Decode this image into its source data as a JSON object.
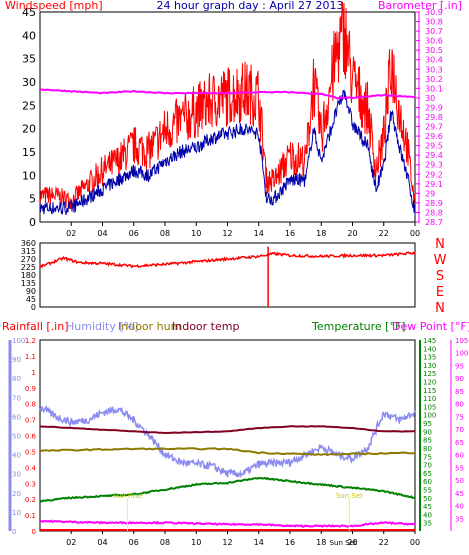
{
  "colors": {
    "wind": "#ff0000",
    "gust_avg": "#0000aa",
    "baro": "#ff00ff",
    "winddir": "#ff0000",
    "rain": "#ff0000",
    "humidity": "#8c8cf0",
    "indoor_hum": "#8c7a00",
    "indoor_temp": "#800020",
    "temperature": "#008000",
    "dewpoint": "#ff00ff",
    "axis_text": "#000000",
    "grid": "#ffffff",
    "frame": "#000000"
  },
  "chart_data": [
    {
      "type": "line",
      "title": "24 hour graph day : April 27 2013",
      "ylabel_left": "Windspeed [mph]",
      "ylabel_right": "Barometer [.in]",
      "x_ticks": [
        "02",
        "04",
        "06",
        "08",
        "10",
        "12",
        "14",
        "16",
        "18",
        "20",
        "22",
        "00"
      ],
      "ylim_left": [
        0,
        45
      ],
      "y_ticks_left": [
        "45",
        "40",
        "35",
        "30",
        "25",
        "20",
        "15",
        "10",
        "5",
        "0"
      ],
      "ylim_right": [
        28.7,
        30.9
      ],
      "y_ticks_right": [
        "30.9",
        "30.8",
        "30.7",
        "30.6",
        "30.5",
        "30.4",
        "30.3",
        "30.2",
        "30.1",
        "30",
        "29.9",
        "29.8",
        "29.7",
        "29.6",
        "29.5",
        "29.4",
        "29.3",
        "29.2",
        "29.1",
        "29",
        "28.9",
        "28.8",
        "28.7"
      ],
      "series": [
        {
          "name": "Windspeed [mph]",
          "axis": "left",
          "x": [
            0,
            1,
            2,
            3,
            4,
            5,
            6,
            7,
            8,
            9,
            10,
            11,
            12,
            13,
            14,
            14.5,
            15,
            16,
            17,
            17.5,
            18,
            19,
            19.5,
            20,
            21,
            21.5,
            22,
            22.5,
            23,
            23.5,
            24
          ],
          "values": [
            5,
            5,
            4,
            7,
            10,
            12,
            15,
            14,
            18,
            20,
            22,
            24,
            25,
            26,
            25,
            8,
            8,
            13,
            12,
            28,
            17,
            34,
            38,
            28,
            22,
            10,
            17,
            32,
            22,
            15,
            3
          ]
        },
        {
          "name": "Average wind",
          "axis": "left",
          "x": [
            0,
            1,
            2,
            3,
            4,
            5,
            6,
            7,
            8,
            9,
            10,
            11,
            12,
            13,
            14,
            14.5,
            15,
            16,
            17,
            17.5,
            18,
            19,
            19.5,
            20,
            21,
            21.5,
            22,
            22.5,
            23,
            23.5,
            24
          ],
          "values": [
            3,
            3,
            3,
            5,
            7,
            9,
            11,
            10,
            13,
            15,
            16,
            18,
            19,
            20,
            19,
            5,
            5,
            9,
            9,
            20,
            13,
            24,
            28,
            21,
            16,
            7,
            12,
            24,
            16,
            10,
            2
          ]
        },
        {
          "name": "Barometer [.in]",
          "axis": "right",
          "x": [
            0,
            2,
            4,
            6,
            8,
            10,
            12,
            14,
            16,
            18,
            19,
            20,
            22,
            24
          ],
          "values": [
            30.09,
            30.07,
            30.05,
            30.07,
            30.05,
            30.05,
            30.05,
            30.06,
            30.06,
            30.04,
            30.0,
            30.0,
            30.03,
            30.01
          ]
        }
      ]
    },
    {
      "type": "line",
      "ylabel_right_ticks": [
        "N",
        "W",
        "S",
        "E",
        "N"
      ],
      "ylim": [
        0,
        360
      ],
      "y_ticks_left": [
        "360",
        "315",
        "270",
        "225",
        "180",
        "135",
        "90",
        "45",
        "0"
      ],
      "series": [
        {
          "name": "Wind direction",
          "x": [
            0,
            1.5,
            2.5,
            4,
            6,
            8,
            10,
            12,
            14,
            15,
            16,
            18,
            20,
            22,
            24
          ],
          "values": [
            225,
            275,
            250,
            245,
            230,
            240,
            255,
            270,
            285,
            300,
            290,
            285,
            290,
            290,
            305
          ]
        }
      ]
    },
    {
      "type": "line",
      "legend": [
        "Rainfall [.in]",
        "Humidity [%]",
        "Indoor hum",
        "Indoor temp",
        "Temperature [°F]",
        "Dew Point [°F]"
      ],
      "y_ticks_rain": [
        "1.2",
        "1.1",
        "1",
        "0.9",
        "0.8",
        "0.7",
        "0.6",
        "0.5",
        "0.4",
        "0.3",
        "0.2",
        "0.1",
        "0"
      ],
      "ylim_rain": [
        0,
        1.2
      ],
      "y_ticks_hum": [
        "100",
        "90",
        "80",
        "70",
        "60",
        "50",
        "40",
        "30",
        "20",
        "10",
        "0"
      ],
      "ylim_hum": [
        0,
        100
      ],
      "y_ticks_temp": [
        "145",
        "140",
        "135",
        "130",
        "125",
        "120",
        "115",
        "110",
        "105",
        "100",
        "95",
        "90",
        "85",
        "80",
        "75",
        "70",
        "65",
        "60",
        "55",
        "50",
        "45",
        "40",
        "35"
      ],
      "ylim_temp": [
        30,
        145
      ],
      "y_ticks_dew": [
        "105",
        "100",
        "95",
        "90",
        "85",
        "80",
        "75",
        "70",
        "65",
        "60",
        "55",
        "50",
        "45",
        "40",
        "35"
      ],
      "ylim_dew": [
        30,
        105
      ],
      "annotations": [
        "Sun Rise",
        "Sun Set",
        "Sun Set"
      ],
      "series": [
        {
          "name": "Rainfall [.in]",
          "x": [
            0,
            24
          ],
          "values": [
            0,
            0
          ]
        },
        {
          "name": "Humidity [%]",
          "x": [
            0,
            1,
            2,
            3,
            4,
            5,
            6,
            7,
            8,
            9,
            10,
            11,
            12,
            13,
            14,
            16,
            18,
            19,
            20,
            21,
            22,
            23,
            24
          ],
          "values": [
            65,
            60,
            57,
            58,
            62,
            64,
            58,
            50,
            40,
            36,
            35,
            34,
            30,
            30,
            35,
            36,
            44,
            40,
            38,
            44,
            62,
            58,
            62
          ]
        },
        {
          "name": "Indoor hum",
          "x": [
            0,
            6,
            12,
            14,
            18,
            24
          ],
          "values": [
            42,
            43,
            43,
            41,
            40,
            41
          ]
        },
        {
          "name": "Indoor temp",
          "x": [
            0,
            4,
            8,
            12,
            14,
            16,
            18,
            20,
            22,
            24
          ],
          "values": [
            93,
            91,
            89,
            90,
            92,
            93,
            93,
            92,
            90,
            90
          ]
        },
        {
          "name": "Temperature [°F]",
          "x": [
            0,
            2,
            4,
            6,
            8,
            10,
            12,
            14,
            16,
            18,
            20,
            22,
            24
          ],
          "values": [
            48,
            50,
            51,
            52,
            55,
            58,
            59,
            62,
            60,
            58,
            56,
            54,
            50
          ]
        },
        {
          "name": "Dew Point [°F]",
          "x": [
            0,
            4,
            8,
            12,
            14,
            16,
            18,
            20,
            22,
            24
          ],
          "values": [
            36,
            35,
            35,
            34,
            34,
            33,
            33,
            33,
            35,
            34
          ]
        }
      ]
    }
  ],
  "labels": {
    "title": "24 hour graph day : April 27 2013",
    "wind_label": "Windspeed [mph]",
    "baro_label": "Barometer [.in]",
    "rain_label": "Rainfall [.in]",
    "hum_label": "Humidity [%]",
    "ihum_label": "Indoor hum",
    "itemp_label": "Indoor temp",
    "temp_label": "Temperature [°F]",
    "dew_label": "Dew Point [°F]",
    "sunrise": "Sun Rise",
    "sunset1": "Sun Set",
    "sunset2": "Sun Set"
  }
}
